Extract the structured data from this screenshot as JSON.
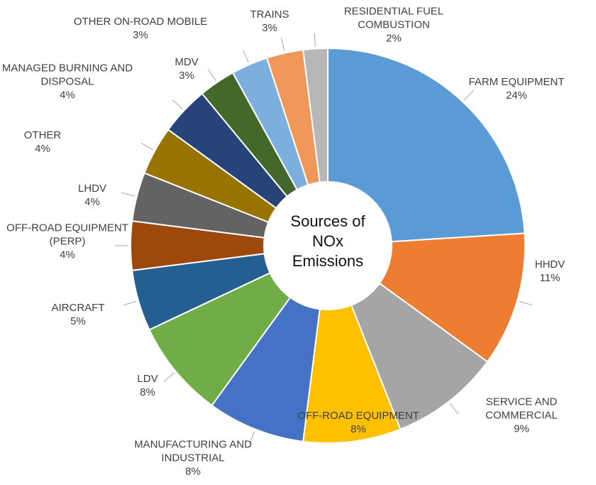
{
  "chart_data": {
    "type": "donut",
    "title": "Sources of NOx Emissions",
    "categories": [
      "FARM EQUIPMENT",
      "HHDV",
      "SERVICE AND COMMERCIAL",
      "OFF-ROAD EQUIPMENT",
      "MANUFACTURING AND INDUSTRIAL",
      "LDV",
      "AIRCRAFT",
      "OFF-ROAD EQUIPMENT (PERP)",
      "LHDV",
      "OTHER",
      "MANAGED BURNING AND DISPOSAL",
      "MDV",
      "OTHER ON-ROAD MOBILE",
      "TRAINS",
      "RESIDENTIAL FUEL COMBUSTION"
    ],
    "values": [
      24,
      11,
      9,
      8,
      8,
      8,
      5,
      4,
      4,
      4,
      4,
      3,
      3,
      3,
      2
    ],
    "value_labels": [
      "24%",
      "11%",
      "9%",
      "8%",
      "8%",
      "8%",
      "5%",
      "4%",
      "4%",
      "4%",
      "4%",
      "3%",
      "3%",
      "3%",
      "2%"
    ],
    "colors": [
      "#5b9bd5",
      "#ed7d31",
      "#a5a5a5",
      "#ffc000",
      "#4472c4",
      "#70ad47",
      "#255e91",
      "#9e480e",
      "#636363",
      "#997300",
      "#264478",
      "#43682b",
      "#7cafdd",
      "#f1975a",
      "#b7b7b7"
    ]
  }
}
